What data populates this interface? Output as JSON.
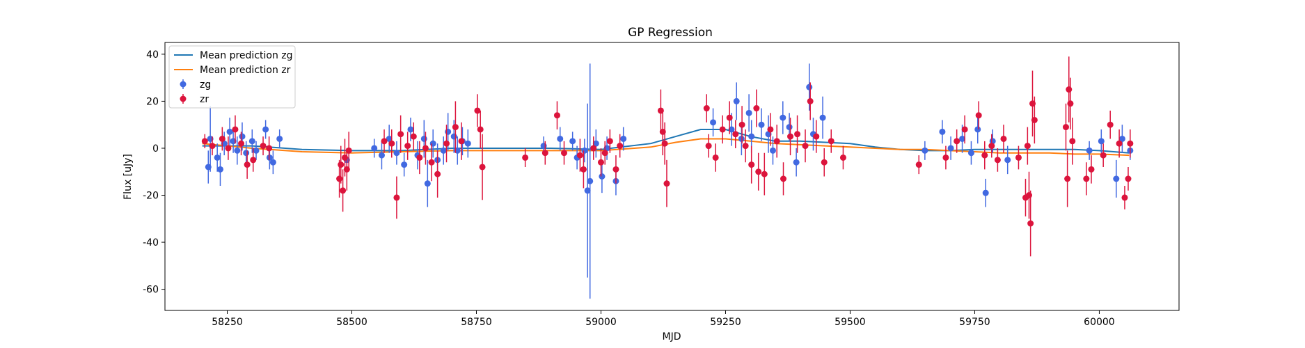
{
  "chart_data": {
    "type": "scatter",
    "title": "GP Regression",
    "xlabel": "MJD",
    "ylabel": "Flux [uJy]",
    "xlim": [
      58125,
      60160
    ],
    "ylim": [
      -69,
      45
    ],
    "xticks": [
      58250,
      58500,
      58750,
      59000,
      59250,
      59500,
      59750,
      60000
    ],
    "yticks": [
      -60,
      -40,
      -20,
      0,
      20,
      40
    ],
    "grid": false,
    "legend_position": "top-left",
    "colors": {
      "zg_line": "#1f77b4",
      "zr_line": "#ff7f0e",
      "zg_points": "#4169e1",
      "zr_points": "#dc143c"
    },
    "lines": [
      {
        "name": "Mean prediction zg",
        "x": [
          58200,
          58300,
          58400,
          58500,
          58600,
          58700,
          58800,
          58900,
          59000,
          59100,
          59150,
          59200,
          59250,
          59300,
          59350,
          59400,
          59450,
          59500,
          59550,
          59600,
          59650,
          59700,
          59750,
          59800,
          59850,
          59900,
          59950,
          60000,
          60060
        ],
        "y": [
          1,
          1,
          -0.5,
          -1,
          -1,
          0,
          0,
          0,
          -0.5,
          2,
          5,
          8,
          8,
          5,
          3,
          3,
          2.5,
          2,
          0.5,
          -0.5,
          -1,
          -1,
          -0.5,
          -0.5,
          -0.5,
          -0.5,
          -0.5,
          -1,
          -2
        ]
      },
      {
        "name": "Mean prediction zr",
        "x": [
          58200,
          58300,
          58400,
          58500,
          58600,
          58700,
          58800,
          58900,
          59000,
          59100,
          59150,
          59200,
          59250,
          59300,
          59350,
          59400,
          59450,
          59500,
          59550,
          59600,
          59650,
          59700,
          59750,
          59800,
          59850,
          59900,
          59950,
          60000,
          60060
        ],
        "y": [
          2,
          0,
          -1.5,
          -2,
          -1.5,
          -1,
          -1,
          -1,
          -1,
          0.5,
          2.5,
          4,
          4,
          3,
          2,
          1.5,
          1,
          0.5,
          0,
          -0.5,
          -0.5,
          -1,
          -1.5,
          -2,
          -2,
          -2,
          -2.5,
          -2.5,
          -3
        ]
      }
    ],
    "series": [
      {
        "name": "zg",
        "points": [
          [
            58212,
            -8,
            7
          ],
          [
            58216,
            4,
            14
          ],
          [
            58230,
            -4,
            6
          ],
          [
            58236,
            -9,
            7
          ],
          [
            58244,
            2,
            5
          ],
          [
            58255,
            7,
            6
          ],
          [
            58262,
            3,
            5
          ],
          [
            58270,
            -1,
            6
          ],
          [
            58280,
            5,
            6
          ],
          [
            58288,
            -2,
            5
          ],
          [
            58300,
            3,
            5
          ],
          [
            58308,
            -1,
            4
          ],
          [
            58327,
            8,
            4
          ],
          [
            58335,
            -4,
            5
          ],
          [
            58342,
            -6,
            5
          ],
          [
            58355,
            4,
            4
          ],
          [
            58490,
            -5,
            5
          ],
          [
            58545,
            0,
            4
          ],
          [
            58560,
            -3,
            6
          ],
          [
            58575,
            4,
            6
          ],
          [
            58590,
            -2,
            5
          ],
          [
            58605,
            -7,
            5
          ],
          [
            58618,
            8,
            5
          ],
          [
            58632,
            -3,
            6
          ],
          [
            58645,
            4,
            8
          ],
          [
            58652,
            -15,
            10
          ],
          [
            58663,
            2,
            6
          ],
          [
            58672,
            -5,
            7
          ],
          [
            58684,
            -1,
            6
          ],
          [
            58693,
            7,
            8
          ],
          [
            58705,
            5,
            7
          ],
          [
            58712,
            -1,
            6
          ],
          [
            58722,
            3,
            6
          ],
          [
            58733,
            2,
            6
          ],
          [
            58885,
            1,
            4
          ],
          [
            58918,
            4,
            5
          ],
          [
            58943,
            3,
            4
          ],
          [
            58952,
            -4,
            5
          ],
          [
            58967,
            -1,
            5
          ],
          [
            58973,
            -18,
            37
          ],
          [
            58978,
            -14,
            50
          ],
          [
            58990,
            2,
            6
          ],
          [
            59002,
            -12,
            7
          ],
          [
            59012,
            0,
            5
          ],
          [
            59030,
            -14,
            6
          ],
          [
            59045,
            4,
            5
          ],
          [
            59225,
            11,
            6
          ],
          [
            59262,
            8,
            7
          ],
          [
            59272,
            20,
            8
          ],
          [
            59282,
            4,
            7
          ],
          [
            59297,
            15,
            8
          ],
          [
            59302,
            5,
            7
          ],
          [
            59322,
            10,
            7
          ],
          [
            59336,
            6,
            8
          ],
          [
            59345,
            -1,
            6
          ],
          [
            59365,
            13,
            7
          ],
          [
            59378,
            9,
            6
          ],
          [
            59392,
            -6,
            6
          ],
          [
            59418,
            26,
            10
          ],
          [
            59426,
            6,
            7
          ],
          [
            59445,
            13,
            9
          ],
          [
            59650,
            -1,
            4
          ],
          [
            59685,
            7,
            5
          ],
          [
            59702,
            0,
            5
          ],
          [
            59725,
            4,
            6
          ],
          [
            59743,
            -2,
            5
          ],
          [
            59756,
            8,
            6
          ],
          [
            59772,
            -19,
            6
          ],
          [
            59786,
            3,
            5
          ],
          [
            59816,
            -5,
            6
          ],
          [
            59980,
            -1,
            4
          ],
          [
            60004,
            3,
            5
          ],
          [
            60034,
            -13,
            8
          ],
          [
            60046,
            4,
            6
          ],
          [
            60062,
            -1,
            4
          ]
        ]
      },
      {
        "name": "zr",
        "points": [
          [
            58205,
            3,
            3
          ],
          [
            58220,
            1,
            4
          ],
          [
            58240,
            4,
            5
          ],
          [
            58252,
            0,
            5
          ],
          [
            58266,
            8,
            6
          ],
          [
            58278,
            2,
            5
          ],
          [
            58290,
            -7,
            6
          ],
          [
            58302,
            -5,
            5
          ],
          [
            58322,
            1,
            4
          ],
          [
            58334,
            0,
            5
          ],
          [
            58475,
            -13,
            8
          ],
          [
            58478,
            -7,
            8
          ],
          [
            58482,
            -18,
            9
          ],
          [
            58486,
            -4,
            8
          ],
          [
            58490,
            -9,
            9
          ],
          [
            58494,
            -1,
            8
          ],
          [
            58565,
            3,
            5
          ],
          [
            58580,
            2,
            6
          ],
          [
            58590,
            -21,
            9
          ],
          [
            58598,
            6,
            8
          ],
          [
            58612,
            1,
            6
          ],
          [
            58624,
            5,
            6
          ],
          [
            58636,
            -4,
            7
          ],
          [
            58648,
            0,
            7
          ],
          [
            58660,
            -6,
            8
          ],
          [
            58672,
            -11,
            10
          ],
          [
            58690,
            2,
            8
          ],
          [
            58708,
            9,
            11
          ],
          [
            58720,
            3,
            8
          ],
          [
            58752,
            16,
            7
          ],
          [
            58758,
            8,
            8
          ],
          [
            58762,
            -8,
            14
          ],
          [
            58848,
            -4,
            4
          ],
          [
            58888,
            -2,
            5
          ],
          [
            58912,
            14,
            6
          ],
          [
            58926,
            -2,
            5
          ],
          [
            58958,
            -3,
            7
          ],
          [
            58965,
            -9,
            8
          ],
          [
            58985,
            0,
            5
          ],
          [
            59000,
            -6,
            6
          ],
          [
            59008,
            -2,
            5
          ],
          [
            59018,
            3,
            5
          ],
          [
            59030,
            -9,
            6
          ],
          [
            59038,
            1,
            5
          ],
          [
            59120,
            16,
            9
          ],
          [
            59124,
            7,
            10
          ],
          [
            59128,
            2,
            9
          ],
          [
            59132,
            -15,
            10
          ],
          [
            59212,
            17,
            6
          ],
          [
            59216,
            1,
            5
          ],
          [
            59230,
            -4,
            6
          ],
          [
            59244,
            8,
            6
          ],
          [
            59258,
            13,
            7
          ],
          [
            59270,
            6,
            6
          ],
          [
            59283,
            10,
            8
          ],
          [
            59290,
            1,
            7
          ],
          [
            59302,
            -7,
            8
          ],
          [
            59312,
            17,
            8
          ],
          [
            59316,
            -10,
            8
          ],
          [
            59328,
            -11,
            9
          ],
          [
            59340,
            8,
            7
          ],
          [
            59353,
            3,
            7
          ],
          [
            59366,
            -13,
            7
          ],
          [
            59380,
            5,
            8
          ],
          [
            59394,
            6,
            8
          ],
          [
            59410,
            1,
            7
          ],
          [
            59420,
            20,
            8
          ],
          [
            59432,
            5,
            7
          ],
          [
            59448,
            -6,
            6
          ],
          [
            59462,
            3,
            5
          ],
          [
            59486,
            -4,
            5
          ],
          [
            59638,
            -7,
            4
          ],
          [
            59692,
            -4,
            5
          ],
          [
            59714,
            3,
            5
          ],
          [
            59730,
            8,
            6
          ],
          [
            59758,
            14,
            6
          ],
          [
            59770,
            -3,
            6
          ],
          [
            59784,
            1,
            5
          ],
          [
            59796,
            -5,
            5
          ],
          [
            59808,
            4,
            6
          ],
          [
            59838,
            -4,
            5
          ],
          [
            59852,
            -21,
            8
          ],
          [
            59856,
            1,
            8
          ],
          [
            59859,
            -20,
            10
          ],
          [
            59862,
            -32,
            14
          ],
          [
            59866,
            19,
            14
          ],
          [
            59870,
            12,
            10
          ],
          [
            59933,
            9,
            10
          ],
          [
            59936,
            -13,
            12
          ],
          [
            59939,
            25,
            14
          ],
          [
            59942,
            19,
            11
          ],
          [
            59946,
            3,
            10
          ],
          [
            59974,
            -13,
            7
          ],
          [
            59984,
            -9,
            6
          ],
          [
            60008,
            -3,
            5
          ],
          [
            60022,
            10,
            6
          ],
          [
            60040,
            2,
            6
          ],
          [
            60051,
            -21,
            5
          ],
          [
            60058,
            -13,
            5
          ],
          [
            60062,
            2,
            6
          ]
        ]
      }
    ]
  },
  "legend": {
    "items": [
      {
        "label": "Mean prediction zg"
      },
      {
        "label": "Mean prediction zr"
      },
      {
        "label": "zg"
      },
      {
        "label": "zr"
      }
    ]
  }
}
